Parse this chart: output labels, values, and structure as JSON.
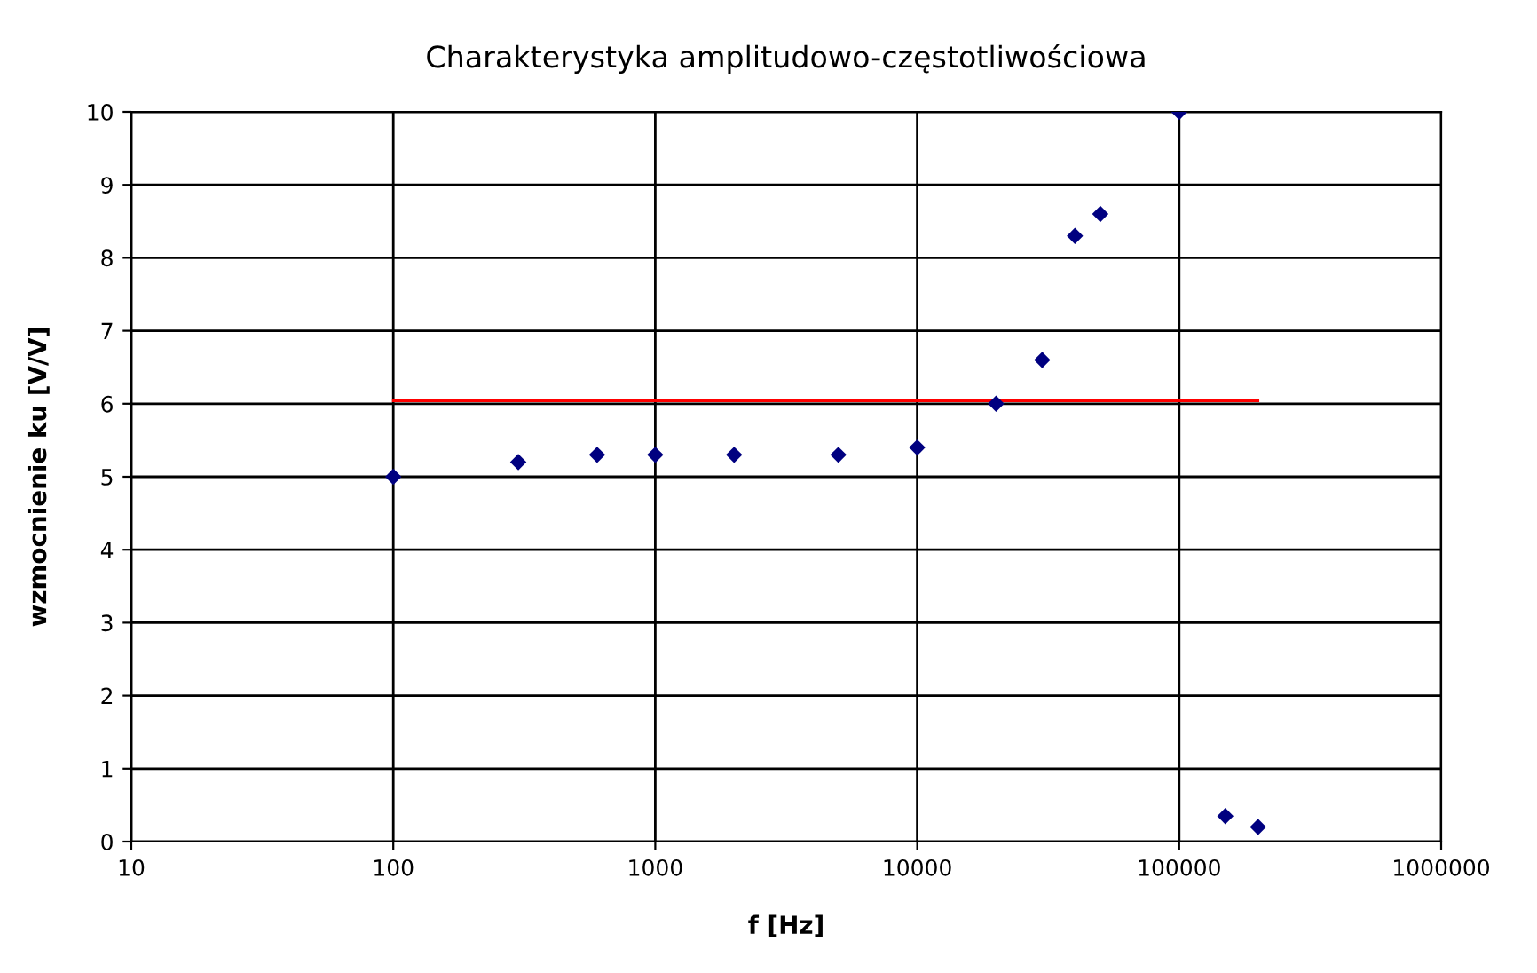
{
  "chart_data": {
    "type": "scatter",
    "title": "Charakterystyka amplitudowo-częstotliwościowa",
    "xlabel": "f [Hz]",
    "ylabel": "wzmocnienie ku [V/V]",
    "log": "x",
    "xlim": [
      10,
      1000000
    ],
    "xticks": [
      10,
      100,
      1000,
      10000,
      100000,
      1000000
    ],
    "ylim": [
      0,
      10
    ],
    "yticks": [
      0,
      1,
      2,
      3,
      4,
      5,
      6,
      7,
      8,
      9,
      10
    ],
    "grid": true,
    "marker": "diamond",
    "series": [
      {
        "color": "#000080",
        "x": [
          100,
          300,
          600,
          1000,
          2000,
          5000,
          10000,
          20000,
          30000,
          40000,
          50000,
          100000,
          150000,
          200000
        ],
        "values": [
          5,
          5.2,
          5.3,
          5.3,
          5.3,
          5.3,
          5.4,
          6,
          6.6,
          8.3,
          8.6,
          10,
          0.35,
          0.2
        ]
      },
      {
        "type": "line",
        "marker": "none",
        "color": "#ff0000",
        "x": [
          100,
          200000
        ],
        "values": [
          6.04,
          6.04
        ]
      }
    ]
  }
}
